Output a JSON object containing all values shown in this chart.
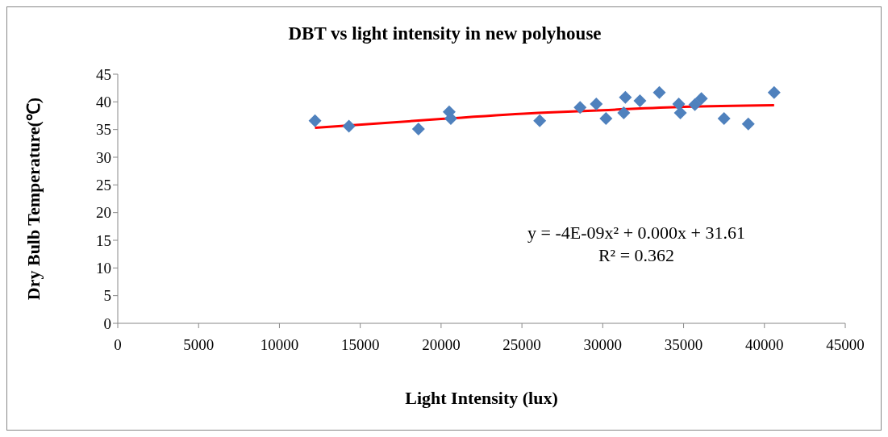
{
  "chart_data": {
    "type": "scatter",
    "title": "DBT vs light intensity in new polyhouse",
    "xlabel": "Light Intensity (lux)",
    "ylabel": "Dry Bulb Temperature(℃)",
    "xlim": [
      0,
      45000
    ],
    "xticks": [
      0,
      5000,
      10000,
      15000,
      20000,
      25000,
      30000,
      35000,
      40000,
      45000
    ],
    "ylim": [
      0,
      45
    ],
    "yticks": [
      0,
      5,
      10,
      15,
      20,
      25,
      30,
      35,
      40,
      45
    ],
    "grid": false,
    "legend": false,
    "series": [
      {
        "marker": "diamond",
        "color": "#4f81bd",
        "x": [
          12200,
          14300,
          18600,
          20500,
          20600,
          26100,
          28600,
          29600,
          30200,
          31300,
          31400,
          32300,
          33500,
          34700,
          34800,
          35700,
          36100,
          37500,
          39000,
          40600
        ],
        "values": [
          36.6,
          35.6,
          35.1,
          38.2,
          37.0,
          36.6,
          39.0,
          39.6,
          37.0,
          38.0,
          40.8,
          40.2,
          41.7,
          39.6,
          38.0,
          39.5,
          40.6,
          37.0,
          36.0,
          41.7
        ]
      },
      {
        "type": "line",
        "color": "#ff0000",
        "line_style": "solid",
        "x": [
          12200,
          20000,
          26000,
          30000,
          35000,
          40600
        ],
        "values": [
          35.3,
          36.9,
          38.0,
          38.5,
          39.1,
          39.4
        ]
      }
    ],
    "annotations": [
      "y = -4E-09x² + 0.000x + 31.61",
      "R² = 0.362"
    ]
  }
}
